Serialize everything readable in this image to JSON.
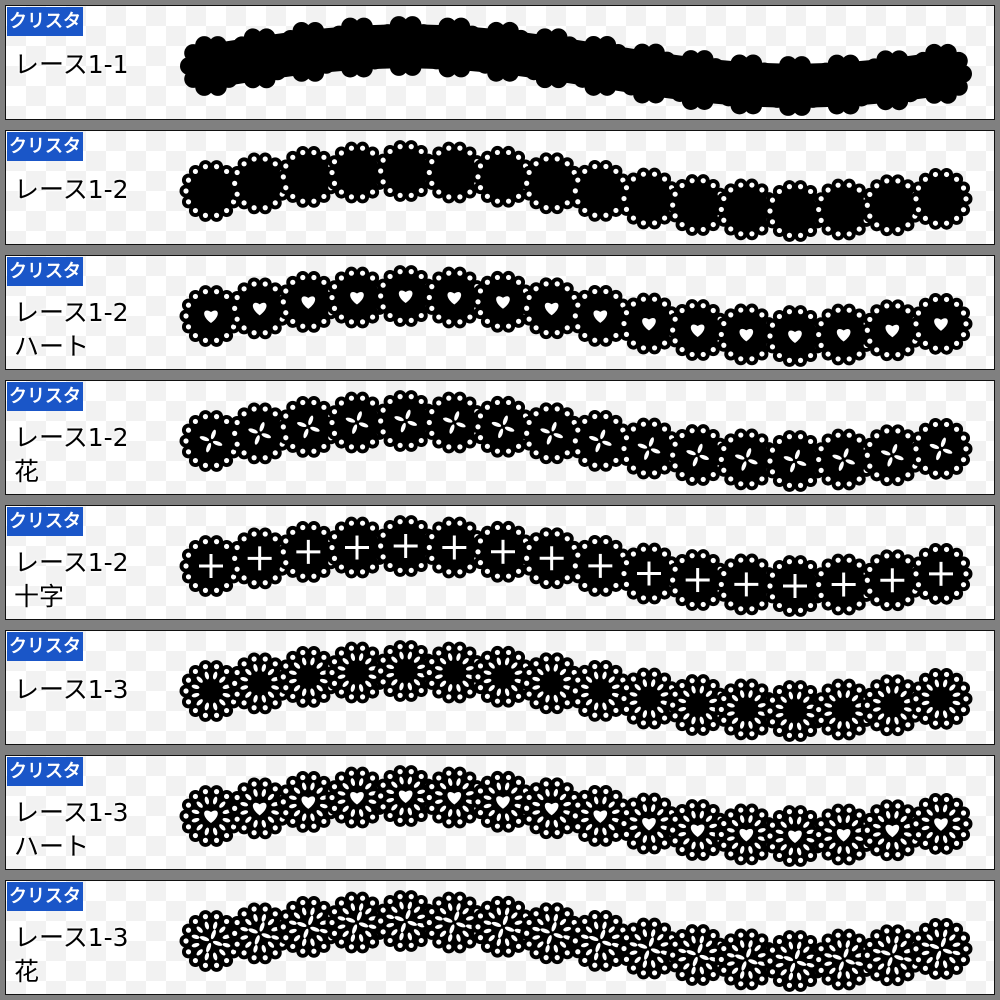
{
  "colors": {
    "badge": "#1a56c8",
    "background": "#808080",
    "lace": "#000000"
  },
  "panels": [
    {
      "badge": "クリスタ",
      "lines": [
        "レース1-1"
      ],
      "style": "1-1",
      "motif": "none"
    },
    {
      "badge": "クリスタ",
      "lines": [
        "レース1-2"
      ],
      "style": "1-2",
      "motif": "none"
    },
    {
      "badge": "クリスタ",
      "lines": [
        "レース1-2",
        "ハート"
      ],
      "style": "1-2",
      "motif": "heart"
    },
    {
      "badge": "クリスタ",
      "lines": [
        "レース1-2",
        "花"
      ],
      "style": "1-2",
      "motif": "flower"
    },
    {
      "badge": "クリスタ",
      "lines": [
        "レース1-2",
        "十字"
      ],
      "style": "1-2",
      "motif": "cross"
    },
    {
      "badge": "クリスタ",
      "lines": [
        "レース1-3"
      ],
      "style": "1-3",
      "motif": "none"
    },
    {
      "badge": "クリスタ",
      "lines": [
        "レース1-3",
        "ハート"
      ],
      "style": "1-3",
      "motif": "heart"
    },
    {
      "badge": "クリスタ",
      "lines": [
        "レース1-3",
        "花"
      ],
      "style": "1-3",
      "motif": "flower"
    }
  ]
}
